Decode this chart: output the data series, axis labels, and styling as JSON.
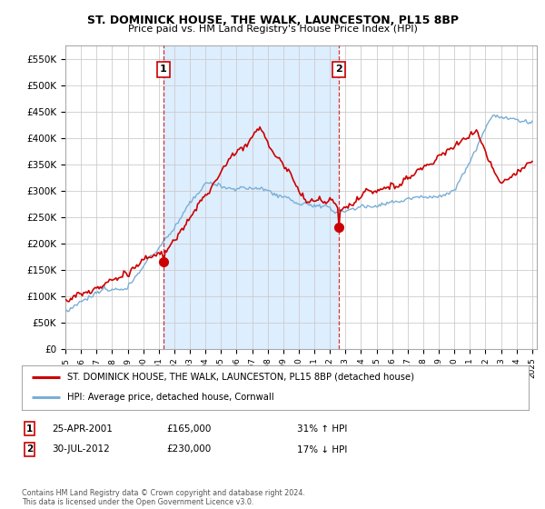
{
  "title": "ST. DOMINICK HOUSE, THE WALK, LAUNCESTON, PL15 8BP",
  "subtitle": "Price paid vs. HM Land Registry's House Price Index (HPI)",
  "legend_label_red": "ST. DOMINICK HOUSE, THE WALK, LAUNCESTON, PL15 8BP (detached house)",
  "legend_label_blue": "HPI: Average price, detached house, Cornwall",
  "sale1_date": "25-APR-2001",
  "sale1_price": "£165,000",
  "sale1_hpi": "31% ↑ HPI",
  "sale1_year": 2001.3,
  "sale1_value": 165000,
  "sale2_date": "30-JUL-2012",
  "sale2_price": "£230,000",
  "sale2_hpi": "17% ↓ HPI",
  "sale2_year": 2012.58,
  "sale2_value": 230000,
  "footer": "Contains HM Land Registry data © Crown copyright and database right 2024.\nThis data is licensed under the Open Government Licence v3.0.",
  "ylim": [
    0,
    575000
  ],
  "yticks": [
    0,
    50000,
    100000,
    150000,
    200000,
    250000,
    300000,
    350000,
    400000,
    450000,
    500000,
    550000
  ],
  "red_color": "#cc0000",
  "blue_color": "#7aaed6",
  "shade_color": "#ddeeff",
  "grid_color": "#cccccc",
  "bg_color": "#ffffff"
}
